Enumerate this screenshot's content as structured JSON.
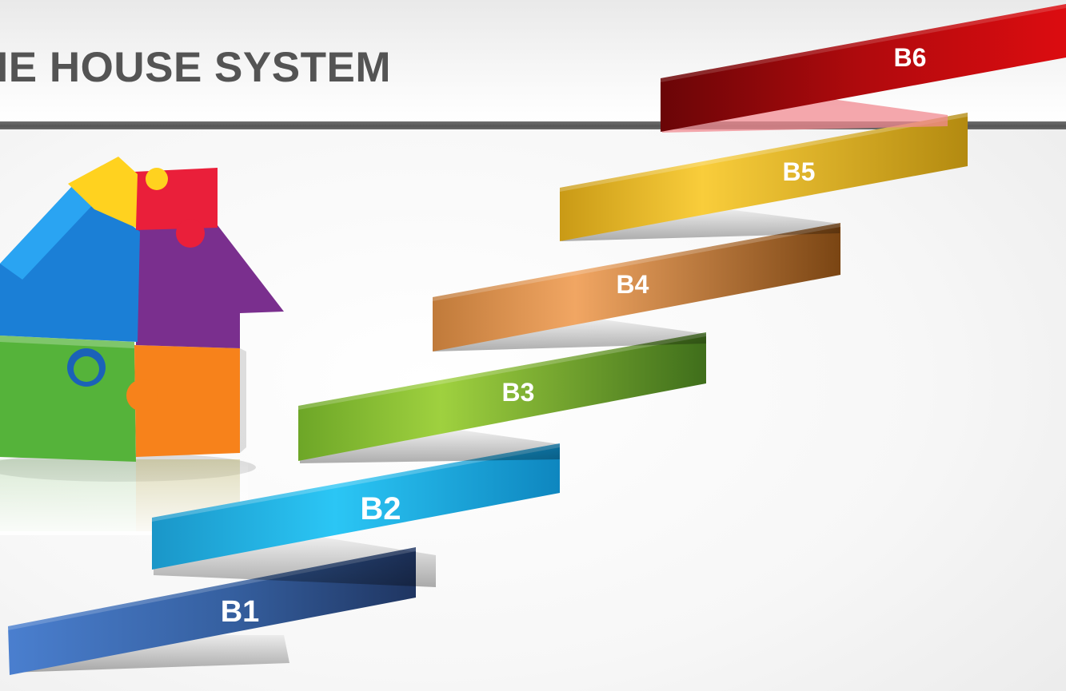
{
  "header": {
    "title": "HE HOUSE SYSTEM"
  },
  "steps": [
    {
      "label": "B1",
      "color": "#2f5ea8"
    },
    {
      "label": "B2",
      "color": "#17a9e1"
    },
    {
      "label": "B3",
      "color": "#7cb72e"
    },
    {
      "label": "B4",
      "color": "#d88a3c"
    },
    {
      "label": "B5",
      "color": "#e7b81f"
    },
    {
      "label": "B6",
      "color": "#c40d10"
    }
  ],
  "illustration": {
    "icon": "puzzle-house-icon",
    "colors": [
      "#ffd21f",
      "#ea1f3a",
      "#1b8fe8",
      "#7a2f8e",
      "#55b33a",
      "#f7821b"
    ]
  }
}
